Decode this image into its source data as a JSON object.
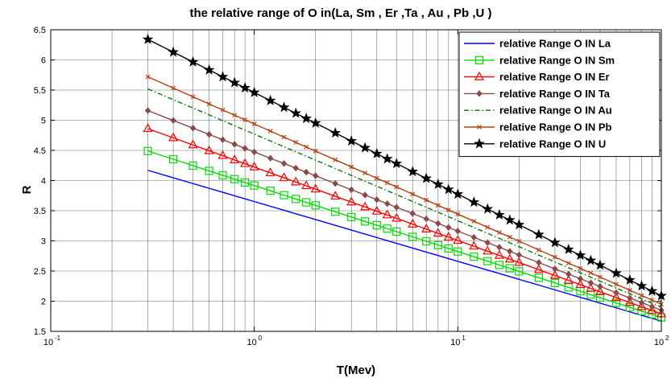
{
  "chart_data": {
    "type": "line",
    "title": "the relative range of O in(La, Sm , Er ,Ta , Au , Pb ,U )",
    "xlabel": "T(Mev)",
    "ylabel": "R",
    "x_scale": "log",
    "xlim": [
      0.1,
      100
    ],
    "ylim": [
      1.5,
      6.5
    ],
    "grid": true,
    "legend_position": "top-right",
    "x_tick_labels": [
      {
        "base": "10",
        "exp": "-1"
      },
      {
        "base": "10",
        "exp": "0"
      },
      {
        "base": "10",
        "exp": "1"
      },
      {
        "base": "10",
        "exp": "2"
      }
    ],
    "y_ticks": [
      1.5,
      2,
      2.5,
      3,
      3.5,
      4,
      4.5,
      5,
      5.5,
      6,
      6.5
    ],
    "x": [
      0.3,
      0.4,
      0.5,
      0.6,
      0.7,
      0.8,
      0.9,
      1,
      1.2,
      1.4,
      1.6,
      1.8,
      2,
      2.5,
      3,
      3.5,
      4,
      4.5,
      5,
      6,
      7,
      8,
      9,
      10,
      12,
      14,
      16,
      18,
      20,
      25,
      30,
      35,
      40,
      45,
      50,
      60,
      70,
      80,
      90,
      100
    ],
    "series": [
      {
        "name": "relative Range O IN La",
        "color": "#0000ff",
        "marker": "none",
        "dash": "solid",
        "y0": 4.17,
        "y1": 1.67
      },
      {
        "name": "relative Range O IN Sm",
        "color": "#00dd00",
        "marker": "square",
        "dash": "solid",
        "y0": 4.49,
        "y1": 1.73
      },
      {
        "name": "relative Range O IN Er",
        "color": "#ff0000",
        "marker": "triangle",
        "dash": "solid",
        "y0": 4.86,
        "y1": 1.79
      },
      {
        "name": "relative Range O IN Ta",
        "color": "#8b4a4a",
        "marker": "diamond",
        "dash": "solid",
        "y0": 5.16,
        "y1": 1.85
      },
      {
        "name": "relative Range O IN Au",
        "color": "#007700",
        "marker": "none",
        "dash": "dashdot",
        "y0": 5.52,
        "y1": 1.9
      },
      {
        "name": "relative Range O IN Pb",
        "color": "#b5400f",
        "marker": "x",
        "dash": "solid",
        "y0": 5.72,
        "y1": 1.95
      },
      {
        "name": "relative Range O IN U",
        "color": "#000000",
        "marker": "star",
        "dash": "solid",
        "y0": 6.34,
        "y1": 2.09
      }
    ]
  }
}
